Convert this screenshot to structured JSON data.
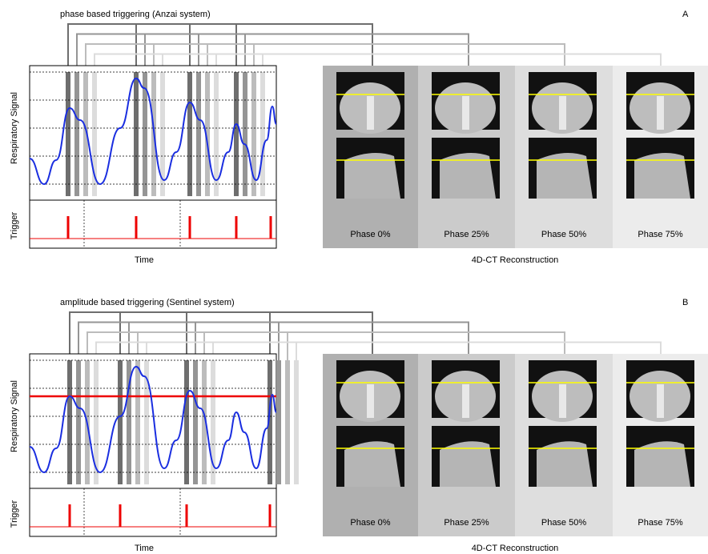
{
  "panels": [
    {
      "title": "phase based triggering (Anzai system)",
      "letter": "A",
      "y_label": "Respiratory Signal",
      "trigger_label": "Trigger",
      "x_label": "Time",
      "reconstruction_label": "4D-CT Reconstruction",
      "phases": [
        "Phase 0%",
        "Phase 25%",
        "Phase 50%",
        "Phase 75%"
      ]
    },
    {
      "title": "amplitude based triggering (Sentinel system)",
      "letter": "B",
      "y_label": "Respiratory Signal",
      "trigger_label": "Trigger",
      "x_label": "Time",
      "reconstruction_label": "4D-CT Reconstruction",
      "phases": [
        "Phase 0%",
        "Phase 25%",
        "Phase 50%",
        "Phase 75%"
      ]
    }
  ]
}
